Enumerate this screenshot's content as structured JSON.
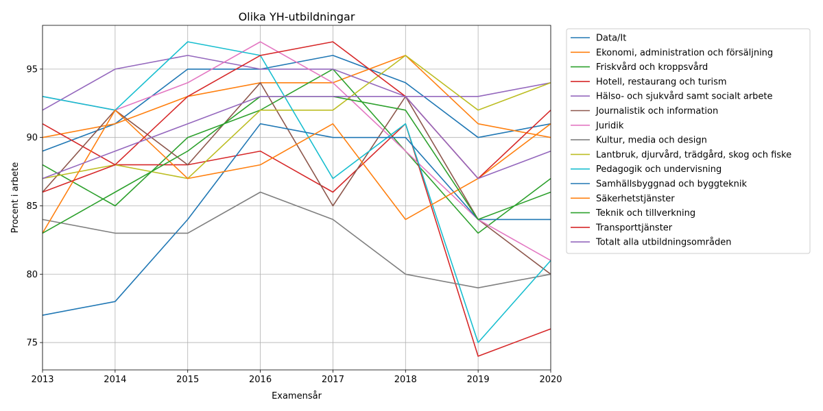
{
  "chart_data": {
    "type": "line",
    "title": "Olika YH-utbildningar",
    "xlabel": "Examensår",
    "ylabel": "Procent i arbete",
    "x": [
      2013,
      2014,
      2015,
      2016,
      2017,
      2018,
      2019,
      2020
    ],
    "xlim": [
      2013,
      2020
    ],
    "ylim": [
      73,
      98.2
    ],
    "yticks": [
      75,
      80,
      85,
      90,
      95
    ],
    "grid": true,
    "legend_position": "outside-right",
    "series": [
      {
        "name": "Data/It",
        "color": "#1f77b4",
        "values": [
          89,
          91,
          95,
          95,
          96,
          94,
          90,
          91
        ]
      },
      {
        "name": "Ekonomi, administration och försäljning",
        "color": "#ff7f0e",
        "values": [
          90,
          91,
          93,
          94,
          94,
          96,
          91,
          90
        ]
      },
      {
        "name": "Friskvård och kroppsvård",
        "color": "#2ca02c",
        "values": [
          88,
          85,
          90,
          92,
          95,
          89,
          83,
          87
        ]
      },
      {
        "name": "Hotell, restaurang och turism",
        "color": "#d62728",
        "values": [
          91,
          88,
          88,
          89,
          86,
          91,
          74,
          76
        ]
      },
      {
        "name": "Hälso- och sjukvård samt socialt arbete",
        "color": "#9467bd",
        "values": [
          92,
          95,
          96,
          95,
          95,
          93,
          93,
          94
        ]
      },
      {
        "name": "Journalistik och information",
        "color": "#8c564b",
        "values": [
          86,
          92,
          88,
          94,
          85,
          93,
          84,
          80
        ]
      },
      {
        "name": "Juridik",
        "color": "#e377c2",
        "values": [
          93,
          92,
          94,
          97,
          94,
          89,
          84,
          81
        ]
      },
      {
        "name": "Kultur, media och design",
        "color": "#7f7f7f",
        "values": [
          84,
          83,
          83,
          86,
          84,
          80,
          79,
          80
        ]
      },
      {
        "name": "Lantbruk, djurvård, trädgård, skog och fiske",
        "color": "#bcbd22",
        "values": [
          87,
          88,
          87,
          92,
          92,
          96,
          92,
          94
        ]
      },
      {
        "name": "Pedagogik och undervisning",
        "color": "#17becf",
        "values": [
          93,
          92,
          97,
          96,
          87,
          91,
          75,
          81
        ]
      },
      {
        "name": "Samhällsbyggnad och byggteknik",
        "color": "#1f77b4",
        "values": [
          77,
          78,
          84,
          91,
          90,
          90,
          84,
          84
        ]
      },
      {
        "name": "Säkerhetstjänster",
        "color": "#ff7f0e",
        "values": [
          83,
          92,
          87,
          88,
          91,
          84,
          87,
          91
        ]
      },
      {
        "name": "Teknik och tillverkning",
        "color": "#2ca02c",
        "values": [
          83,
          86,
          89,
          93,
          93,
          92,
          84,
          86
        ]
      },
      {
        "name": "Transporttjänster",
        "color": "#d62728",
        "values": [
          86,
          88,
          93,
          96,
          97,
          93,
          87,
          92
        ]
      },
      {
        "name": "Totalt alla utbildningsområden",
        "color": "#9467bd",
        "values": [
          87,
          89,
          91,
          93,
          93,
          93,
          87,
          89
        ]
      }
    ]
  }
}
